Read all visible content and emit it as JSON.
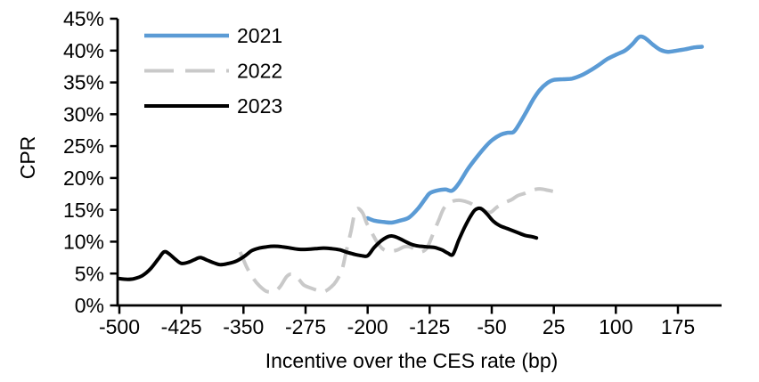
{
  "chart_data": {
    "type": "line",
    "title": "",
    "xlabel": "Incentive over the CES rate (bp)",
    "ylabel": "CPR",
    "xlim": [
      -500,
      210
    ],
    "ylim": [
      0,
      45
    ],
    "grid": false,
    "legend_position": "top-left-inside",
    "background_color": "#FFFFFF",
    "axis_color": "#000000",
    "x_tick_values": [
      -500,
      -425,
      -350,
      -275,
      -200,
      -125,
      -50,
      25,
      100,
      175
    ],
    "x_tick_labels": [
      "-500",
      "-425",
      "-350",
      "-275",
      "-200",
      "-125",
      "-50",
      "25",
      "100",
      "175"
    ],
    "y_tick_values": [
      0,
      5,
      10,
      15,
      20,
      25,
      30,
      35,
      40,
      45
    ],
    "y_tick_labels": [
      "0%",
      "5%",
      "10%",
      "15%",
      "20%",
      "25%",
      "30%",
      "35%",
      "40%",
      "45%"
    ],
    "series": [
      {
        "name": "2021",
        "color": "#5B9BD5",
        "style": "solid",
        "width": 4.5,
        "points": [
          [
            -200,
            13.7
          ],
          [
            -192,
            13.3
          ],
          [
            -181,
            13.1
          ],
          [
            -171,
            13.0
          ],
          [
            -161,
            13.3
          ],
          [
            -150,
            13.8
          ],
          [
            -139,
            15.2
          ],
          [
            -130,
            16.8
          ],
          [
            -125,
            17.6
          ],
          [
            -117,
            18.0
          ],
          [
            -106,
            18.2
          ],
          [
            -98,
            18.0
          ],
          [
            -90,
            19.1
          ],
          [
            -79,
            21.4
          ],
          [
            -68,
            23.3
          ],
          [
            -57,
            25.0
          ],
          [
            -49,
            26.0
          ],
          [
            -39,
            26.8
          ],
          [
            -31,
            27.1
          ],
          [
            -24,
            27.2
          ],
          [
            -18,
            28.2
          ],
          [
            -9,
            30.2
          ],
          [
            0,
            32.3
          ],
          [
            8,
            33.8
          ],
          [
            17,
            34.9
          ],
          [
            25,
            35.4
          ],
          [
            36,
            35.5
          ],
          [
            47,
            35.6
          ],
          [
            58,
            36.1
          ],
          [
            68,
            36.8
          ],
          [
            79,
            37.7
          ],
          [
            90,
            38.7
          ],
          [
            101,
            39.4
          ],
          [
            111,
            40.0
          ],
          [
            120,
            41.0
          ],
          [
            126,
            41.9
          ],
          [
            130,
            42.2
          ],
          [
            136,
            41.9
          ],
          [
            145,
            40.9
          ],
          [
            154,
            40.1
          ],
          [
            163,
            39.8
          ],
          [
            174,
            40.0
          ],
          [
            184,
            40.2
          ],
          [
            195,
            40.5
          ],
          [
            204,
            40.6
          ]
        ]
      },
      {
        "name": "2022",
        "color": "#C9C9C9",
        "style": "dashed",
        "width": 4,
        "points": [
          [
            -354,
            8.4
          ],
          [
            -346,
            6.0
          ],
          [
            -338,
            4.2
          ],
          [
            -331,
            3.1
          ],
          [
            -322,
            2.2
          ],
          [
            -313,
            2.2
          ],
          [
            -306,
            2.9
          ],
          [
            -298,
            4.5
          ],
          [
            -292,
            4.9
          ],
          [
            -284,
            4.2
          ],
          [
            -277,
            3.2
          ],
          [
            -268,
            2.7
          ],
          [
            -259,
            2.3
          ],
          [
            -252,
            2.2
          ],
          [
            -244,
            2.9
          ],
          [
            -238,
            3.8
          ],
          [
            -231,
            5.6
          ],
          [
            -226,
            8.4
          ],
          [
            -220,
            11.7
          ],
          [
            -216,
            14.3
          ],
          [
            -212,
            15.2
          ],
          [
            -206,
            14.5
          ],
          [
            -201,
            12.9
          ],
          [
            -194,
            11.2
          ],
          [
            -188,
            9.8
          ],
          [
            -181,
            8.8
          ],
          [
            -173,
            8.5
          ],
          [
            -164,
            8.7
          ],
          [
            -156,
            9.2
          ],
          [
            -149,
            9.2
          ],
          [
            -141,
            8.7
          ],
          [
            -135,
            8.4
          ],
          [
            -128,
            9.1
          ],
          [
            -121,
            11.2
          ],
          [
            -114,
            13.4
          ],
          [
            -108,
            15.2
          ],
          [
            -100,
            16.2
          ],
          [
            -90,
            16.5
          ],
          [
            -79,
            16.2
          ],
          [
            -71,
            15.7
          ],
          [
            -62,
            15.0
          ],
          [
            -52,
            14.6
          ],
          [
            -44,
            15.4
          ],
          [
            -35,
            16.1
          ],
          [
            -26,
            16.6
          ],
          [
            -19,
            17.2
          ],
          [
            -10,
            17.6
          ],
          [
            -1,
            18.1
          ],
          [
            8,
            18.3
          ],
          [
            17,
            18.1
          ],
          [
            24,
            17.9
          ]
        ]
      },
      {
        "name": "2023",
        "color": "#000000",
        "style": "solid",
        "width": 4,
        "points": [
          [
            -500,
            4.2
          ],
          [
            -490,
            4.1
          ],
          [
            -482,
            4.2
          ],
          [
            -472,
            4.7
          ],
          [
            -462,
            5.8
          ],
          [
            -453,
            7.3
          ],
          [
            -446,
            8.4
          ],
          [
            -440,
            8.1
          ],
          [
            -432,
            7.2
          ],
          [
            -425,
            6.6
          ],
          [
            -416,
            6.8
          ],
          [
            -409,
            7.2
          ],
          [
            -402,
            7.5
          ],
          [
            -394,
            7.1
          ],
          [
            -386,
            6.7
          ],
          [
            -378,
            6.4
          ],
          [
            -368,
            6.6
          ],
          [
            -358,
            7.0
          ],
          [
            -348,
            7.8
          ],
          [
            -340,
            8.6
          ],
          [
            -331,
            9.0
          ],
          [
            -322,
            9.2
          ],
          [
            -313,
            9.3
          ],
          [
            -303,
            9.2
          ],
          [
            -293,
            9.0
          ],
          [
            -283,
            8.8
          ],
          [
            -273,
            8.8
          ],
          [
            -263,
            8.9
          ],
          [
            -253,
            9.0
          ],
          [
            -243,
            8.9
          ],
          [
            -233,
            8.7
          ],
          [
            -224,
            8.3
          ],
          [
            -215,
            8.0
          ],
          [
            -207,
            7.8
          ],
          [
            -200,
            7.8
          ],
          [
            -192,
            9.1
          ],
          [
            -184,
            10.1
          ],
          [
            -177,
            10.7
          ],
          [
            -171,
            10.9
          ],
          [
            -163,
            10.6
          ],
          [
            -154,
            10.0
          ],
          [
            -145,
            9.5
          ],
          [
            -137,
            9.3
          ],
          [
            -128,
            9.2
          ],
          [
            -119,
            9.1
          ],
          [
            -110,
            8.7
          ],
          [
            -103,
            8.2
          ],
          [
            -97,
            8.0
          ],
          [
            -90,
            10.2
          ],
          [
            -83,
            12.2
          ],
          [
            -76,
            13.9
          ],
          [
            -70,
            15.0
          ],
          [
            -63,
            15.2
          ],
          [
            -56,
            14.4
          ],
          [
            -48,
            13.2
          ],
          [
            -40,
            12.5
          ],
          [
            -30,
            12.0
          ],
          [
            -20,
            11.5
          ],
          [
            -10,
            11.0
          ],
          [
            -2,
            10.8
          ],
          [
            4,
            10.6
          ]
        ]
      }
    ]
  }
}
